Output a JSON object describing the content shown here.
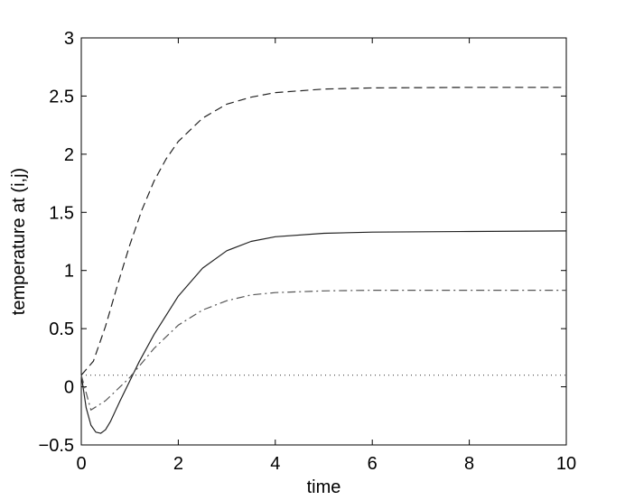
{
  "chart_data": {
    "type": "line",
    "title": "",
    "xlabel": "time",
    "ylabel": "temperature at (i,j)",
    "xlim": [
      0,
      10
    ],
    "ylim": [
      -0.5,
      3
    ],
    "grid": false,
    "x_ticks": [
      0,
      2,
      4,
      6,
      8,
      10
    ],
    "x_tick_labels": [
      "0",
      "2",
      "4",
      "6",
      "8",
      "10"
    ],
    "y_ticks": [
      -0.5,
      0,
      0.5,
      1,
      1.5,
      2,
      2.5,
      3
    ],
    "y_tick_labels": [
      "−0.5",
      "0",
      "0.5",
      "1",
      "1.5",
      "2",
      "2.5",
      "3"
    ],
    "series": [
      {
        "style": "solid",
        "color": "#222222",
        "x": [
          0,
          0.1,
          0.2,
          0.3,
          0.4,
          0.5,
          0.6,
          0.8,
          1.0,
          1.2,
          1.5,
          2.0,
          2.5,
          3.0,
          3.5,
          4.0,
          5.0,
          6.0,
          8.0,
          10.0
        ],
        "y": [
          0.1,
          -0.18,
          -0.33,
          -0.39,
          -0.4,
          -0.37,
          -0.3,
          -0.12,
          0.05,
          0.22,
          0.45,
          0.78,
          1.02,
          1.17,
          1.25,
          1.29,
          1.32,
          1.33,
          1.335,
          1.34
        ]
      },
      {
        "style": "dashed",
        "color": "#222222",
        "x": [
          0,
          0.25,
          0.5,
          0.75,
          1.0,
          1.25,
          1.5,
          1.75,
          2.0,
          2.5,
          3.0,
          3.5,
          4.0,
          5.0,
          6.0,
          8.0,
          10.0
        ],
        "y": [
          0.1,
          0.22,
          0.52,
          0.88,
          1.22,
          1.52,
          1.77,
          1.96,
          2.11,
          2.31,
          2.43,
          2.49,
          2.53,
          2.56,
          2.57,
          2.575,
          2.575
        ]
      },
      {
        "style": "dashdot",
        "color": "#555555",
        "x": [
          0,
          0.2,
          0.5,
          1.0,
          1.5,
          2.0,
          2.5,
          3.0,
          3.5,
          4.0,
          5.0,
          6.0,
          8.0,
          10.0
        ],
        "y": [
          0.1,
          -0.2,
          -0.12,
          0.08,
          0.33,
          0.53,
          0.66,
          0.74,
          0.79,
          0.81,
          0.825,
          0.83,
          0.83,
          0.83
        ]
      },
      {
        "style": "dotted",
        "color": "#444444",
        "x": [
          0,
          10
        ],
        "y": [
          0.1,
          0.1
        ]
      }
    ]
  }
}
